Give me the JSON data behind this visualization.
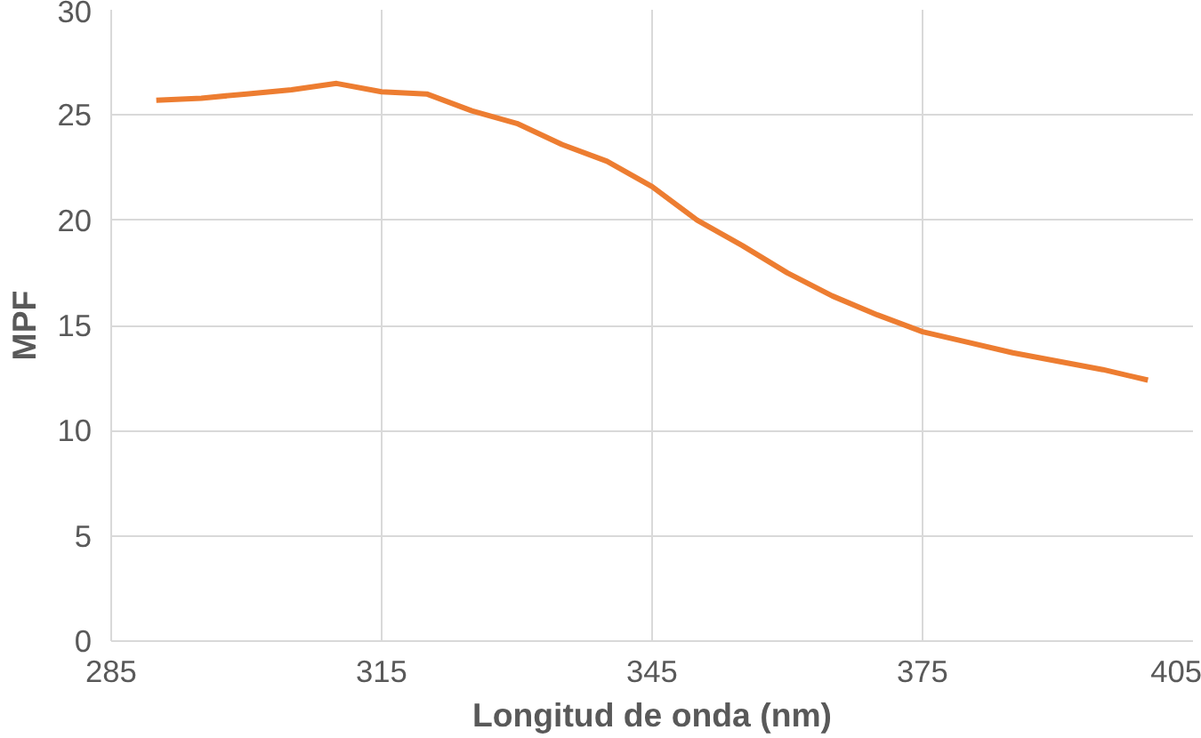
{
  "chart_data": {
    "type": "line",
    "xlabel": "Longitud de onda (nm)",
    "ylabel": "MPF",
    "x": [
      290,
      295,
      300,
      305,
      310,
      315,
      320,
      325,
      330,
      335,
      340,
      345,
      350,
      355,
      360,
      365,
      370,
      375,
      380,
      385,
      390,
      395,
      400
    ],
    "series": [
      {
        "color": "#ed7d31",
        "values": [
          25.7,
          25.8,
          26.0,
          26.2,
          26.5,
          26.1,
          26.0,
          25.2,
          24.6,
          23.6,
          22.8,
          21.6,
          20.0,
          18.8,
          17.5,
          16.4,
          15.5,
          14.7,
          14.2,
          13.7,
          13.3,
          12.9,
          12.4
        ]
      }
    ],
    "xlim": [
      285,
      405
    ],
    "xticks": [
      285,
      315,
      345,
      375,
      405
    ],
    "ylim": [
      0,
      30
    ],
    "yticks": [
      0,
      5,
      10,
      15,
      20,
      25,
      30
    ],
    "grid": true,
    "line_style": "solid"
  }
}
